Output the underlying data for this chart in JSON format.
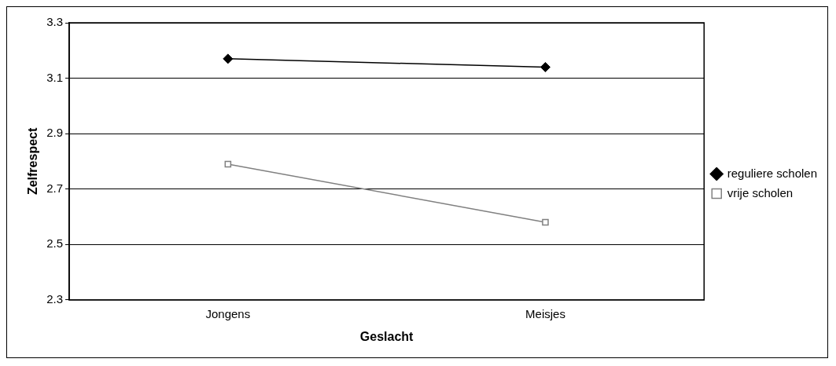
{
  "chart_data": {
    "type": "line",
    "xlabel": "Geslacht",
    "ylabel": "Zelfrespect",
    "categories": [
      "Jongens",
      "Meisjes"
    ],
    "series": [
      {
        "name": "reguliere scholen",
        "color": "#000000",
        "marker": "diamond",
        "values": [
          3.17,
          3.14
        ]
      },
      {
        "name": "vrije scholen",
        "color": "#808080",
        "marker": "square",
        "values": [
          2.79,
          2.58
        ]
      }
    ],
    "ylim": [
      2.3,
      3.3
    ],
    "yticks": [
      {
        "value": 2.3,
        "label": "2.3"
      },
      {
        "value": 2.5,
        "label": "2.5"
      },
      {
        "value": 2.7,
        "label": "2.7"
      },
      {
        "value": 2.9,
        "label": "2.9"
      },
      {
        "value": 3.1,
        "label": "3.1"
      },
      {
        "value": 3.3,
        "label": "3.3"
      }
    ],
    "grid": "y",
    "legend": "right"
  }
}
